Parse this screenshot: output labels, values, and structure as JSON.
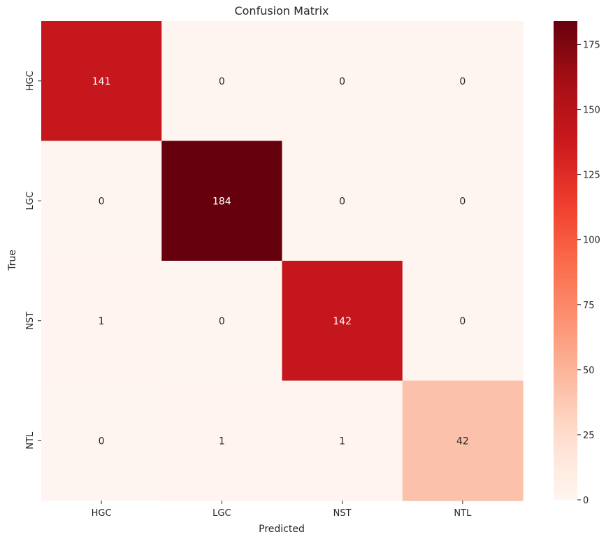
{
  "chart_data": {
    "type": "heatmap",
    "title": "Confusion Matrix",
    "xlabel": "Predicted",
    "ylabel": "True",
    "x_categories": [
      "HGC",
      "LGC",
      "NST",
      "NTL"
    ],
    "y_categories": [
      "HGC",
      "LGC",
      "NST",
      "NTL"
    ],
    "values": [
      [
        141,
        0,
        0,
        0
      ],
      [
        0,
        184,
        0,
        0
      ],
      [
        1,
        0,
        142,
        0
      ],
      [
        0,
        1,
        1,
        42
      ]
    ],
    "colormap": "Reds",
    "colorbar": {
      "range": [
        0,
        184
      ],
      "ticks": [
        0,
        25,
        50,
        75,
        100,
        125,
        150,
        175
      ]
    },
    "grid": false
  }
}
